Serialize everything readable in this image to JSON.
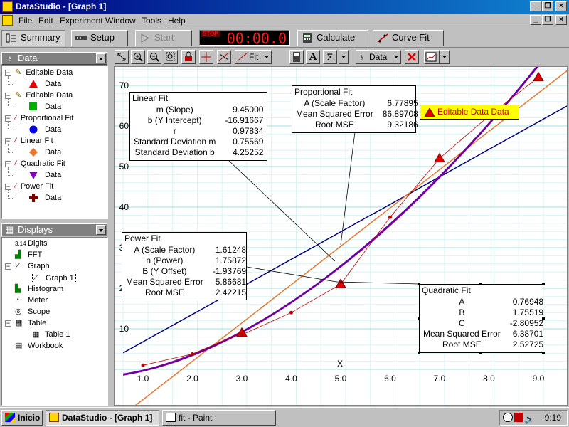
{
  "window": {
    "title": "DataStudio - [Graph 1]"
  },
  "menu": [
    "File",
    "Edit",
    "Experiment",
    "Window",
    "Tools",
    "Help"
  ],
  "toolbar": {
    "summary": "Summary",
    "setup": "Setup",
    "start": "Start",
    "timer": "00:00.0",
    "stop_label": "STOP",
    "calculate": "Calculate",
    "curve_fit": "Curve Fit"
  },
  "data_pane": {
    "title": "Data",
    "items": [
      {
        "label": "Editable Data",
        "child": "Data",
        "marker": "triangle",
        "color": "#e00000"
      },
      {
        "label": "Editable Data",
        "child": "Data",
        "marker": "square",
        "color": "#00b000"
      },
      {
        "label": "Proportional Fit",
        "child": "Data",
        "marker": "circle",
        "color": "#0000e0"
      },
      {
        "label": "Linear Fit",
        "child": "Data",
        "marker": "diamond",
        "color": "#e87830"
      },
      {
        "label": "Quadratic Fit",
        "child": "Data",
        "marker": "down-triangle",
        "color": "#8000c0"
      },
      {
        "label": "Power Fit",
        "child": "Data",
        "marker": "plus",
        "color": "#800000"
      }
    ]
  },
  "displays_pane": {
    "title": "Displays",
    "items": [
      {
        "label": "Digits",
        "icon": "3.14",
        "level": 0
      },
      {
        "label": "FFT",
        "level": 0
      },
      {
        "label": "Graph",
        "level": 0
      },
      {
        "label": "Graph 1",
        "level": 1
      },
      {
        "label": "Histogram",
        "level": 0
      },
      {
        "label": "Meter",
        "level": 0
      },
      {
        "label": "Scope",
        "level": 0
      },
      {
        "label": "Table",
        "level": 0
      },
      {
        "label": "Table 1",
        "level": 1
      },
      {
        "label": "Workbook",
        "level": 0
      }
    ]
  },
  "graph_toolbar": {
    "fit_label": "Fit",
    "data_label": "Data",
    "text_label": "A",
    "sigma_label": "Σ"
  },
  "chart_data": {
    "type": "scatter",
    "xlabel": "X",
    "xlim": [
      0.6,
      9.6
    ],
    "ylim": [
      -1,
      76
    ],
    "x_ticks": [
      "1.0",
      "2.0",
      "3.0",
      "4.0",
      "5.0",
      "6.0",
      "7.0",
      "8.0",
      "9.0"
    ],
    "y_ticks": [
      "10",
      "20",
      "30",
      "40",
      "50",
      "60",
      "70"
    ],
    "series": [
      {
        "name": "Editable Data Data",
        "marker": "triangle",
        "color": "#e00000",
        "x": [
          3,
          5,
          7,
          9
        ],
        "y": [
          9,
          21,
          52,
          72
        ]
      },
      {
        "marker": "dot",
        "color": "#c00000",
        "x": [
          1,
          2,
          3,
          4,
          6,
          8
        ],
        "y": [
          1,
          3.8,
          8.5,
          14,
          37.5,
          62.5
        ]
      }
    ],
    "fits": [
      {
        "model": "proportional",
        "color": "#000080",
        "A": 6.77895
      },
      {
        "model": "linear",
        "color": "#e87830",
        "m": 9.45,
        "b": -16.91667
      },
      {
        "model": "quadratic",
        "color": "#a040a0",
        "A": 0.76948,
        "B": 1.75519,
        "C": -2.80952
      },
      {
        "model": "power",
        "color": "#7000a0",
        "A": 1.61248,
        "n": 1.75872,
        "B": -1.93769
      }
    ],
    "legend_label": "Editable Data Data"
  },
  "linear_fit": {
    "title": "Linear Fit",
    "rows": [
      [
        "m (Slope)",
        "9.45000"
      ],
      [
        "b (Y Intercept)",
        "-16.91667"
      ],
      [
        "r",
        "0.97834"
      ],
      [
        "Standard Deviation  m",
        "0.75569"
      ],
      [
        "Standard Deviation  b",
        "4.25252"
      ]
    ]
  },
  "proportional_fit": {
    "title": "Proportional Fit",
    "rows": [
      [
        "A (Scale Factor)",
        "6.77895"
      ],
      [
        "Mean Squared Error",
        "86.89708"
      ],
      [
        "Root MSE",
        "9.32186"
      ]
    ]
  },
  "power_fit": {
    "title": "Power Fit",
    "rows": [
      [
        "A (Scale Factor)",
        "1.61248"
      ],
      [
        "n (Power)",
        "1.75872"
      ],
      [
        "B (Y Offset)",
        "-1.93769"
      ],
      [
        "Mean Squared Error",
        "5.86681"
      ],
      [
        "Root MSE",
        "2.42215"
      ]
    ]
  },
  "quadratic_fit": {
    "title": "Quadratic Fit",
    "rows": [
      [
        "A",
        "0.76948"
      ],
      [
        "B",
        "1.75519"
      ],
      [
        "C",
        "-2.80952"
      ],
      [
        "Mean Squared Error",
        "6.38701"
      ],
      [
        "Root MSE",
        "2.52725"
      ]
    ]
  },
  "taskbar": {
    "start": "Inicio",
    "tasks": [
      "DataStudio - [Graph 1]",
      "fit - Paint"
    ],
    "clock": "9:19"
  }
}
